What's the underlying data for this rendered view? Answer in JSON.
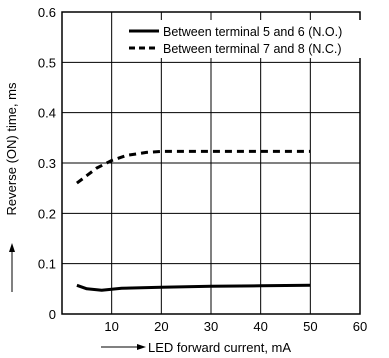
{
  "chart_data": {
    "type": "line",
    "xlabel": "LED forward current, mA",
    "ylabel": "Reverse (ON) time, ms",
    "xlim": [
      0,
      60
    ],
    "ylim": [
      0,
      0.6
    ],
    "x_ticks": [
      "10",
      "20",
      "30",
      "40",
      "50",
      "60"
    ],
    "y_ticks": [
      "0",
      "0.1",
      "0.2",
      "0.3",
      "0.4",
      "0.5",
      "0.6"
    ],
    "grid": true,
    "legend_position": "top-right",
    "series": [
      {
        "name": "Between terminal 5 and 6 (N.O.)",
        "style": "solid",
        "color": "#000000",
        "points": [
          [
            3,
            0.057
          ],
          [
            5,
            0.05
          ],
          [
            8,
            0.047
          ],
          [
            12,
            0.051
          ],
          [
            20,
            0.053
          ],
          [
            30,
            0.055
          ],
          [
            40,
            0.056
          ],
          [
            50,
            0.057
          ]
        ]
      },
      {
        "name": "Between terminal 7 and 8 (N.C.)",
        "style": "dashed",
        "color": "#000000",
        "points": [
          [
            3,
            0.26
          ],
          [
            5,
            0.275
          ],
          [
            7,
            0.29
          ],
          [
            10,
            0.305
          ],
          [
            13,
            0.315
          ],
          [
            17,
            0.321
          ],
          [
            20,
            0.323
          ],
          [
            30,
            0.323
          ],
          [
            40,
            0.323
          ],
          [
            50,
            0.323
          ]
        ]
      }
    ]
  }
}
